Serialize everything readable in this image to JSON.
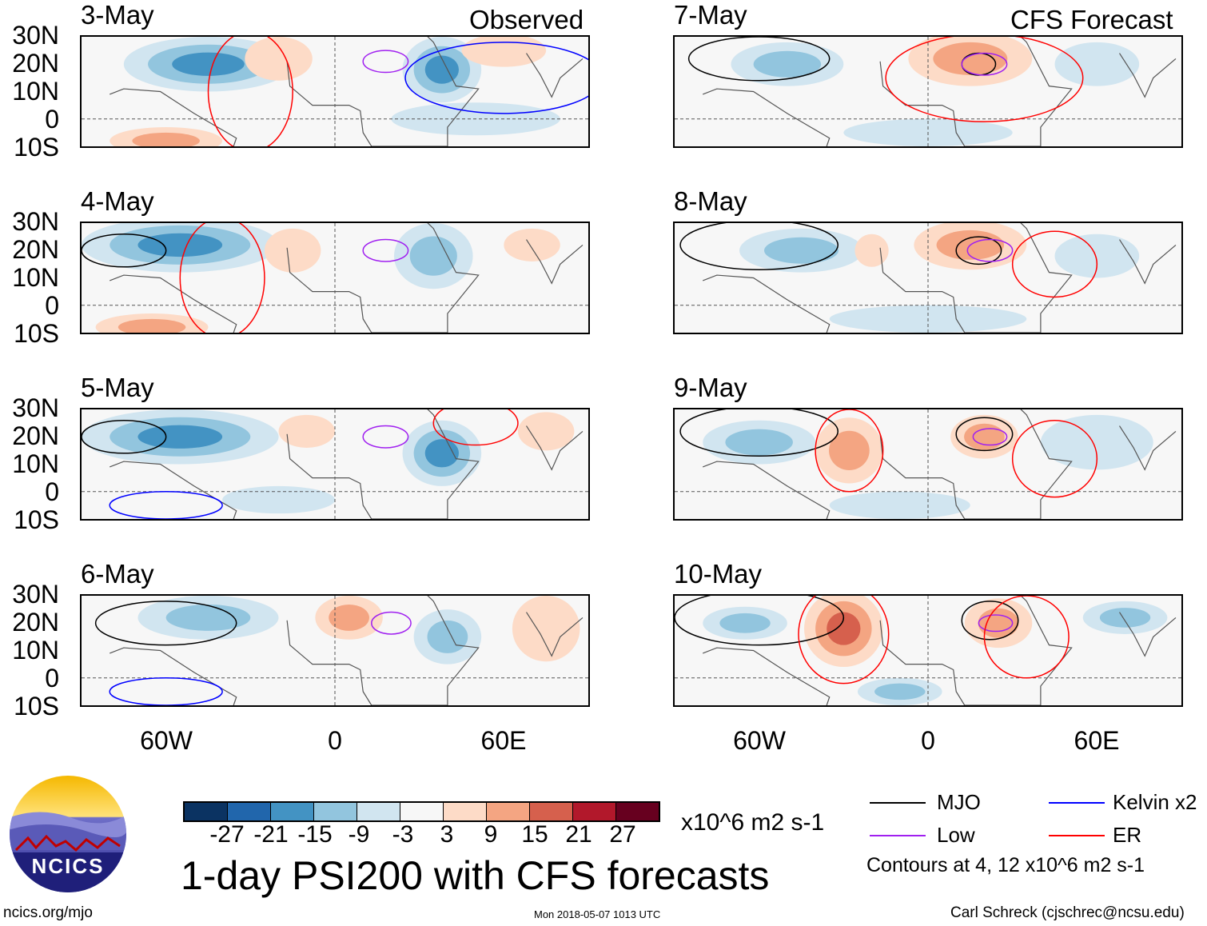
{
  "titles": {
    "observed": "Observed",
    "forecast": "CFS Forecast"
  },
  "lat_labels": [
    "30N",
    "20N",
    "10N",
    "0",
    "10S"
  ],
  "lon_labels": [
    "60W",
    "0",
    "60E"
  ],
  "panels": [
    {
      "date": "3-May",
      "col": 0,
      "row": 0,
      "shading": [
        {
          "lon": -45,
          "lat": 20,
          "rx": 30,
          "ry": 10,
          "v": -16
        },
        {
          "lon": 38,
          "lat": 18,
          "rx": 14,
          "ry": 12,
          "v": -18
        },
        {
          "lon": -20,
          "lat": 22,
          "rx": 12,
          "ry": 8,
          "v": 6
        },
        {
          "lon": -60,
          "lat": -8,
          "rx": 20,
          "ry": 5,
          "v": 12
        },
        {
          "lon": 60,
          "lat": 25,
          "rx": 15,
          "ry": 6,
          "v": 6
        },
        {
          "lon": 50,
          "lat": 0,
          "rx": 30,
          "ry": 6,
          "v": -6
        }
      ],
      "contours": [
        {
          "t": "low",
          "lon": 18,
          "lat": 21,
          "rx": 8,
          "ry": 4
        },
        {
          "t": "kelvin",
          "lon": 60,
          "lat": 15,
          "rx": 35,
          "ry": 13
        },
        {
          "t": "er",
          "lon": -30,
          "lat": 10,
          "rx": 15,
          "ry": 22
        }
      ]
    },
    {
      "date": "4-May",
      "col": 0,
      "row": 1,
      "shading": [
        {
          "lon": -55,
          "lat": 22,
          "rx": 35,
          "ry": 10,
          "v": -20
        },
        {
          "lon": 35,
          "lat": 18,
          "rx": 14,
          "ry": 12,
          "v": -15
        },
        {
          "lon": -15,
          "lat": 20,
          "rx": 10,
          "ry": 8,
          "v": 5
        },
        {
          "lon": -65,
          "lat": -8,
          "rx": 20,
          "ry": 5,
          "v": 10
        },
        {
          "lon": 70,
          "lat": 22,
          "rx": 10,
          "ry": 6,
          "v": 6
        }
      ],
      "contours": [
        {
          "t": "mjo",
          "lon": -75,
          "lat": 20,
          "rx": 15,
          "ry": 6
        },
        {
          "t": "low",
          "lon": 18,
          "lat": 20,
          "rx": 8,
          "ry": 4
        },
        {
          "t": "er",
          "lon": -40,
          "lat": 10,
          "rx": 15,
          "ry": 22
        }
      ]
    },
    {
      "date": "5-May",
      "col": 0,
      "row": 2,
      "shading": [
        {
          "lon": -55,
          "lat": 20,
          "rx": 35,
          "ry": 10,
          "v": -17
        },
        {
          "lon": 38,
          "lat": 14,
          "rx": 14,
          "ry": 12,
          "v": -16
        },
        {
          "lon": -10,
          "lat": 22,
          "rx": 10,
          "ry": 6,
          "v": 6
        },
        {
          "lon": 75,
          "lat": 22,
          "rx": 10,
          "ry": 7,
          "v": 8
        },
        {
          "lon": -20,
          "lat": -3,
          "rx": 20,
          "ry": 5,
          "v": -4
        }
      ],
      "contours": [
        {
          "t": "mjo",
          "lon": -75,
          "lat": 20,
          "rx": 15,
          "ry": 6
        },
        {
          "t": "low",
          "lon": 18,
          "lat": 20,
          "rx": 8,
          "ry": 4
        },
        {
          "t": "er",
          "lon": 50,
          "lat": 25,
          "rx": 15,
          "ry": 8
        },
        {
          "t": "kelvin",
          "lon": -60,
          "lat": -5,
          "rx": 20,
          "ry": 5
        }
      ]
    },
    {
      "date": "6-May",
      "col": 0,
      "row": 3,
      "shading": [
        {
          "lon": -45,
          "lat": 22,
          "rx": 25,
          "ry": 8,
          "v": -12
        },
        {
          "lon": 40,
          "lat": 15,
          "rx": 12,
          "ry": 10,
          "v": -14
        },
        {
          "lon": 5,
          "lat": 22,
          "rx": 12,
          "ry": 8,
          "v": 10
        },
        {
          "lon": 75,
          "lat": 18,
          "rx": 12,
          "ry": 12,
          "v": 6
        }
      ],
      "contours": [
        {
          "t": "mjo",
          "lon": -60,
          "lat": 20,
          "rx": 25,
          "ry": 8
        },
        {
          "t": "low",
          "lon": 20,
          "lat": 20,
          "rx": 7,
          "ry": 4
        },
        {
          "t": "kelvin",
          "lon": -60,
          "lat": -5,
          "rx": 20,
          "ry": 5
        }
      ]
    },
    {
      "date": "7-May",
      "col": 1,
      "row": 0,
      "shading": [
        {
          "lon": -50,
          "lat": 20,
          "rx": 20,
          "ry": 8,
          "v": -14
        },
        {
          "lon": 15,
          "lat": 22,
          "rx": 22,
          "ry": 10,
          "v": 10
        },
        {
          "lon": 60,
          "lat": 20,
          "rx": 15,
          "ry": 8,
          "v": -6
        },
        {
          "lon": 0,
          "lat": -5,
          "rx": 30,
          "ry": 5,
          "v": -6
        }
      ],
      "contours": [
        {
          "t": "mjo",
          "lon": -60,
          "lat": 22,
          "rx": 25,
          "ry": 8
        },
        {
          "t": "mjo",
          "lon": 18,
          "lat": 20,
          "rx": 6,
          "ry": 4
        },
        {
          "t": "low",
          "lon": 20,
          "lat": 20,
          "rx": 8,
          "ry": 4
        },
        {
          "t": "er",
          "lon": 20,
          "lat": 15,
          "rx": 35,
          "ry": 16
        }
      ]
    },
    {
      "date": "8-May",
      "col": 1,
      "row": 1,
      "shading": [
        {
          "lon": -45,
          "lat": 20,
          "rx": 22,
          "ry": 8,
          "v": -14
        },
        {
          "lon": 15,
          "lat": 22,
          "rx": 20,
          "ry": 9,
          "v": 10
        },
        {
          "lon": -20,
          "lat": 20,
          "rx": 6,
          "ry": 6,
          "v": 5
        },
        {
          "lon": 60,
          "lat": 18,
          "rx": 15,
          "ry": 8,
          "v": -6
        },
        {
          "lon": 0,
          "lat": -5,
          "rx": 35,
          "ry": 5,
          "v": -7
        }
      ],
      "contours": [
        {
          "t": "mjo",
          "lon": -60,
          "lat": 22,
          "rx": 28,
          "ry": 9
        },
        {
          "t": "mjo",
          "lon": 18,
          "lat": 20,
          "rx": 8,
          "ry": 5
        },
        {
          "t": "low",
          "lon": 22,
          "lat": 20,
          "rx": 8,
          "ry": 4
        },
        {
          "t": "er",
          "lon": 45,
          "lat": 15,
          "rx": 15,
          "ry": 12
        }
      ]
    },
    {
      "date": "9-May",
      "col": 1,
      "row": 2,
      "shading": [
        {
          "lon": -60,
          "lat": 18,
          "rx": 20,
          "ry": 8,
          "v": -12
        },
        {
          "lon": -28,
          "lat": 15,
          "rx": 12,
          "ry": 12,
          "v": 10
        },
        {
          "lon": 20,
          "lat": 20,
          "rx": 12,
          "ry": 8,
          "v": 10
        },
        {
          "lon": 60,
          "lat": 18,
          "rx": 20,
          "ry": 10,
          "v": -6
        },
        {
          "lon": -10,
          "lat": -5,
          "rx": 25,
          "ry": 5,
          "v": -6
        }
      ],
      "contours": [
        {
          "t": "mjo",
          "lon": -60,
          "lat": 22,
          "rx": 28,
          "ry": 9
        },
        {
          "t": "mjo",
          "lon": 20,
          "lat": 21,
          "rx": 10,
          "ry": 6
        },
        {
          "t": "low",
          "lon": 22,
          "lat": 20,
          "rx": 6,
          "ry": 3
        },
        {
          "t": "er",
          "lon": -28,
          "lat": 15,
          "rx": 12,
          "ry": 15
        },
        {
          "t": "er",
          "lon": 45,
          "lat": 12,
          "rx": 15,
          "ry": 14
        }
      ]
    },
    {
      "date": "10-May",
      "col": 1,
      "row": 3,
      "shading": [
        {
          "lon": -30,
          "lat": 18,
          "rx": 14,
          "ry": 14,
          "v": 20
        },
        {
          "lon": -65,
          "lat": 20,
          "rx": 15,
          "ry": 6,
          "v": -10
        },
        {
          "lon": 25,
          "lat": 20,
          "rx": 12,
          "ry": 9,
          "v": 12
        },
        {
          "lon": 70,
          "lat": 22,
          "rx": 15,
          "ry": 6,
          "v": -12
        },
        {
          "lon": -10,
          "lat": -5,
          "rx": 15,
          "ry": 5,
          "v": -12
        }
      ],
      "contours": [
        {
          "t": "mjo",
          "lon": -60,
          "lat": 22,
          "rx": 30,
          "ry": 10
        },
        {
          "t": "mjo",
          "lon": 22,
          "lat": 21,
          "rx": 10,
          "ry": 7
        },
        {
          "t": "low",
          "lon": 24,
          "lat": 20,
          "rx": 6,
          "ry": 3
        },
        {
          "t": "er",
          "lon": -30,
          "lat": 16,
          "rx": 16,
          "ry": 18
        },
        {
          "t": "er",
          "lon": 35,
          "lat": 15,
          "rx": 15,
          "ry": 15
        }
      ]
    }
  ],
  "colorbar": {
    "colors": [
      "#0b3362",
      "#2166ac",
      "#4393c3",
      "#92c5de",
      "#d1e5f0",
      "#f7f7f7",
      "#fddbc7",
      "#f4a582",
      "#d6604d",
      "#b2182b",
      "#67001f"
    ],
    "ticks": [
      "-27",
      "-21",
      "-15",
      "-9",
      "-3",
      "3",
      "9",
      "15",
      "21",
      "27"
    ],
    "units": "x10^6 m2 s-1"
  },
  "legend": {
    "mjo": {
      "label": "MJO",
      "color": "#000000"
    },
    "kelvin": {
      "label": "Kelvin x2",
      "color": "#0000ff"
    },
    "low": {
      "label": "Low",
      "color": "#a020f0"
    },
    "er": {
      "label": "ER",
      "color": "#ff0000"
    },
    "note": "Contours at 4, 12 x10^6 m2 s-1"
  },
  "main_title": "1-day PSI200 with CFS forecasts",
  "logo_text": "NCICS",
  "footer": {
    "url": "ncics.org/mjo",
    "timestamp": "Mon 2018-05-07 1013 UTC",
    "author": "Carl Schreck (cjschrec@ncsu.edu)"
  }
}
